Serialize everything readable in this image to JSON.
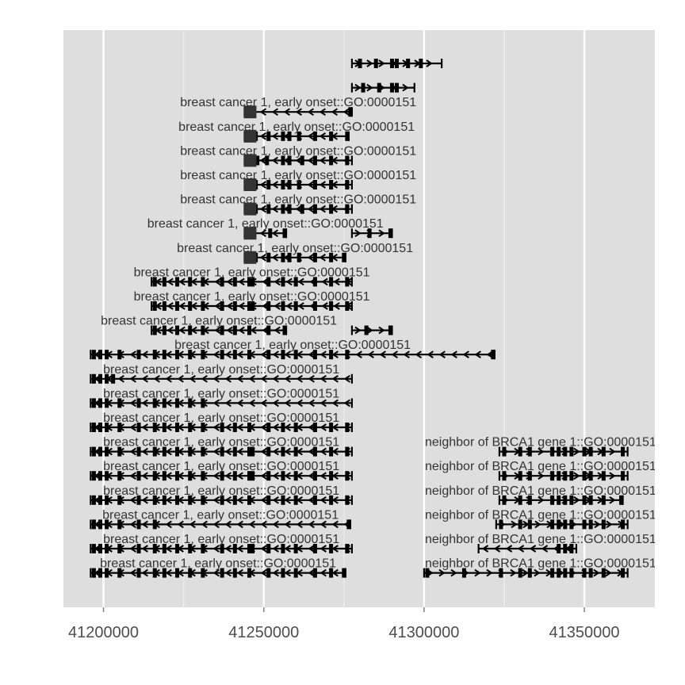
{
  "chart_data": {
    "type": "gene-track",
    "title": "",
    "xlabel": "",
    "ylabel": "",
    "xlim": [
      41187500,
      41372000
    ],
    "x_ticks": [
      41200000,
      41250000,
      41300000,
      41350000
    ],
    "x_tick_labels": [
      "41200000",
      "41250000",
      "41300000",
      "41350000"
    ],
    "grid": true,
    "colors": {
      "panel": "#dedede",
      "grid": "#ffffff",
      "gene": "#000000",
      "utr": "#333333",
      "label": "#333333",
      "tick": "#4d4d4d"
    },
    "tracks": [
      {
        "row": 1,
        "start": 41277500,
        "end": 41305500,
        "strand": "+",
        "exons": [
          41280000,
          41285000,
          41290000,
          41291500,
          41295000,
          41299000
        ],
        "label": ""
      },
      {
        "row": 2,
        "start": 41277500,
        "end": 41297000,
        "strand": "+",
        "exons": [
          41281000,
          41286000,
          41290000,
          41291500
        ],
        "label": ""
      },
      {
        "row": 3,
        "start": 41244000,
        "end": 41277500,
        "strand": "-",
        "exons": [
          41244500,
          41277000
        ],
        "label": "breast cancer 1, early onset::GO:0000151"
      },
      {
        "row": 4,
        "start": 41244000,
        "end": 41276500,
        "strand": "-",
        "exons": [
          41245000,
          41247500,
          41251500,
          41256000,
          41258000,
          41261000,
          41266000,
          41271000,
          41276000
        ],
        "label": "breast cancer 1, early onset::GO:0000151"
      },
      {
        "row": 5,
        "start": 41244000,
        "end": 41277500,
        "strand": "-",
        "exons": [
          41245000,
          41248000,
          41251000,
          41256000,
          41258000,
          41262000,
          41266000,
          41271000,
          41276000
        ],
        "label": "breast cancer 1, early onset::GO:0000151"
      },
      {
        "row": 6,
        "start": 41244000,
        "end": 41277500,
        "strand": "-",
        "exons": [
          41245000,
          41247500,
          41251500,
          41256000,
          41258000,
          41261000,
          41266000,
          41271000,
          41276000
        ],
        "label": "breast cancer 1, early onset::GO:0000151"
      },
      {
        "row": 7,
        "start": 41244000,
        "end": 41277500,
        "strand": "-",
        "exons": [
          41245000,
          41247500,
          41251500,
          41256000,
          41258000,
          41262000,
          41266000,
          41271000,
          41276000
        ],
        "label": "breast cancer 1, early onset::GO:0000151"
      },
      {
        "row": 8,
        "start": 41244000,
        "end": 41257000,
        "strand": "-",
        "exons": [
          41245000,
          41252000,
          41256500
        ],
        "label": "breast cancer 1, early onset::GO:0000151",
        "extra": {
          "start": 41277500,
          "end": 41290000,
          "strand": "+",
          "exons": [
            41283000,
            41289500
          ]
        }
      },
      {
        "row": 9,
        "start": 41244000,
        "end": 41275500,
        "strand": "-",
        "exons": [
          41245000,
          41247500,
          41251500,
          41256000,
          41258000,
          41261000,
          41266000,
          41271000,
          41275000
        ],
        "label": "breast cancer 1, early onset::GO:0000151"
      },
      {
        "row": 10,
        "start": 41215000,
        "end": 41277500,
        "strand": "-",
        "exons": [
          41216000,
          41219000,
          41223000,
          41227000,
          41231000,
          41237000,
          41241000,
          41245500,
          41246500,
          41251500,
          41256000,
          41260000,
          41266000,
          41271000,
          41276000
        ],
        "label": "breast cancer 1, early onset::GO:0000151"
      },
      {
        "row": 11,
        "start": 41215000,
        "end": 41277500,
        "strand": "-",
        "exons": [
          41216000,
          41219000,
          41223000,
          41227000,
          41231000,
          41237000,
          41241000,
          41245500,
          41246500,
          41251500,
          41256000,
          41260000,
          41266000,
          41271000,
          41276000
        ],
        "label": "breast cancer 1, early onset::GO:0000151"
      },
      {
        "row": 12,
        "start": 41215000,
        "end": 41257000,
        "strand": "-",
        "exons": [
          41216000,
          41219000,
          41223000,
          41227000,
          41231000,
          41237000,
          41241000,
          41245500,
          41251500,
          41256500
        ],
        "label": "breast cancer 1, early onset::GO:0000151",
        "extra": {
          "start": 41277500,
          "end": 41290000,
          "strand": "+",
          "exons": [
            41282000,
            41289500
          ]
        }
      },
      {
        "row": 13,
        "start": 41196000,
        "end": 41322000,
        "strand": "-",
        "exons": [
          41197000,
          41199000,
          41201000,
          41205000,
          41211000,
          41216000,
          41219000,
          41223000,
          41227000,
          41231000,
          41237000,
          41241000,
          41245500,
          41251500,
          41256000,
          41260000,
          41266000,
          41271000,
          41276000,
          41321500
        ],
        "label": "breast cancer 1, early onset::GO:0000151"
      },
      {
        "row": 14,
        "start": 41196000,
        "end": 41277500,
        "strand": "-",
        "exons": [
          41197000,
          41199000,
          41201000,
          41203000
        ],
        "label": "breast cancer 1, early onset::GO:0000151"
      },
      {
        "row": 15,
        "start": 41196000,
        "end": 41277500,
        "strand": "-",
        "exons": [
          41197000,
          41199000,
          41201000,
          41205000,
          41211000,
          41216000,
          41219000,
          41223000,
          41227000,
          41231000
        ],
        "label": "breast cancer 1, early onset::GO:0000151"
      },
      {
        "row": 16,
        "start": 41196000,
        "end": 41277500,
        "strand": "-",
        "exons": [
          41197000,
          41199000,
          41201000,
          41205000,
          41211000,
          41216000,
          41219000,
          41223000,
          41227000,
          41231000,
          41237000,
          41241000,
          41245500,
          41251500,
          41256000,
          41260000,
          41266000,
          41271000,
          41276000
        ],
        "label": "breast cancer 1, early onset::GO:0000151"
      },
      {
        "row": 17,
        "start": 41196000,
        "end": 41277500,
        "strand": "-",
        "exons": [
          41197000,
          41199000,
          41201000,
          41205000,
          41211000,
          41216000,
          41219000,
          41223000,
          41227000,
          41231000,
          41237000,
          41241000,
          41245500,
          41246500,
          41251500,
          41256000,
          41260000,
          41266000,
          41271000,
          41276000
        ],
        "label": "breast cancer 1, early onset::GO:0000151",
        "extra": {
          "start": 41323500,
          "end": 41363500,
          "strand": "+",
          "exons": [
            41325000,
            41330000,
            41333000,
            41340000,
            41342000,
            41344000,
            41346000,
            41350000,
            41352000,
            41356000,
            41362000
          ],
          "label": "neighbor of BRCA1 gene 1::GO:0000151"
        }
      },
      {
        "row": 18,
        "start": 41196000,
        "end": 41277500,
        "strand": "-",
        "exons": [
          41197000,
          41199000,
          41201000,
          41205000,
          41211000,
          41216000,
          41219000,
          41223000,
          41227000,
          41231000,
          41237000,
          41241000,
          41245500,
          41246500,
          41251500,
          41256000,
          41260000,
          41266000,
          41271000,
          41276000
        ],
        "label": "breast cancer 1, early onset::GO:0000151",
        "extra": {
          "start": 41323500,
          "end": 41363500,
          "strand": "+",
          "exons": [
            41325000,
            41330000,
            41333000,
            41340000,
            41342000,
            41344000,
            41346000,
            41350000,
            41352000,
            41356000,
            41362000
          ],
          "label": "neighbor of BRCA1 gene 1::GO:0000151"
        }
      },
      {
        "row": 19,
        "start": 41196000,
        "end": 41277500,
        "strand": "-",
        "exons": [
          41197000,
          41199000,
          41201000,
          41205000,
          41211000,
          41216000,
          41219000,
          41223000,
          41227000,
          41231000,
          41237000,
          41241000,
          41245500,
          41251500,
          41256000,
          41260000,
          41266000,
          41271000,
          41276000
        ],
        "label": "breast cancer 1, early onset::GO:0000151",
        "extra": {
          "start": 41323500,
          "end": 41362000,
          "strand": "+",
          "exons": [
            41325000,
            41330000,
            41333000,
            41340000,
            41342000,
            41344000,
            41346000,
            41350000,
            41352000,
            41356000,
            41361500
          ],
          "label": "neighbor of BRCA1 gene 1::GO:0000151"
        }
      },
      {
        "row": 20,
        "start": 41196000,
        "end": 41277000,
        "strand": "-",
        "exons": [
          41197000,
          41199000,
          41201000,
          41205000,
          41211000,
          41216000,
          41276500
        ],
        "label": "breast cancer 1, early onset::GO:0000151",
        "extra": {
          "start": 41322500,
          "end": 41363500,
          "strand": "+",
          "exons": [
            41324000,
            41330000,
            41333000,
            41340000,
            41342000,
            41344000,
            41346000,
            41350000,
            41352000,
            41356000,
            41362000
          ],
          "label": "neighbor of BRCA1 gene 1::GO:0000151"
        }
      },
      {
        "row": 21,
        "start": 41196000,
        "end": 41277500,
        "strand": "-",
        "exons": [
          41197000,
          41199000,
          41201000,
          41205000,
          41211000,
          41216000,
          41219000,
          41223000,
          41227000,
          41231000,
          41237000,
          41241000,
          41245500,
          41246500,
          41251500,
          41256000,
          41260000,
          41266000,
          41271000,
          41276000
        ],
        "label": "breast cancer 1, early onset::GO:0000151",
        "extra": {
          "start": 41317000,
          "end": 41347500,
          "strand": "-",
          "exons": [
            41342000,
            41344000,
            41346000
          ],
          "label": "neighbor of BRCA1 gene 1::GO:0000151"
        }
      },
      {
        "row": 22,
        "start": 41196000,
        "end": 41275500,
        "strand": "-",
        "exons": [
          41197000,
          41199000,
          41201000,
          41205000,
          41211000,
          41216000,
          41219000,
          41223000,
          41227000,
          41231000,
          41237000,
          41241000,
          41245500,
          41251500,
          41256000,
          41260000,
          41266000,
          41271000,
          41275000
        ],
        "label": "breast cancer 1, early onset::GO:0000151",
        "extra": {
          "start": 41300000,
          "end": 41363500,
          "strand": "+",
          "exons": [
            41301000,
            41312500,
            41324000,
            41330000,
            41333000,
            41340000,
            41342000,
            41344000,
            41346000,
            41350000,
            41352000,
            41356000,
            41362000
          ],
          "label": "neighbor of BRCA1 gene 1::GO:0000151"
        }
      }
    ]
  }
}
